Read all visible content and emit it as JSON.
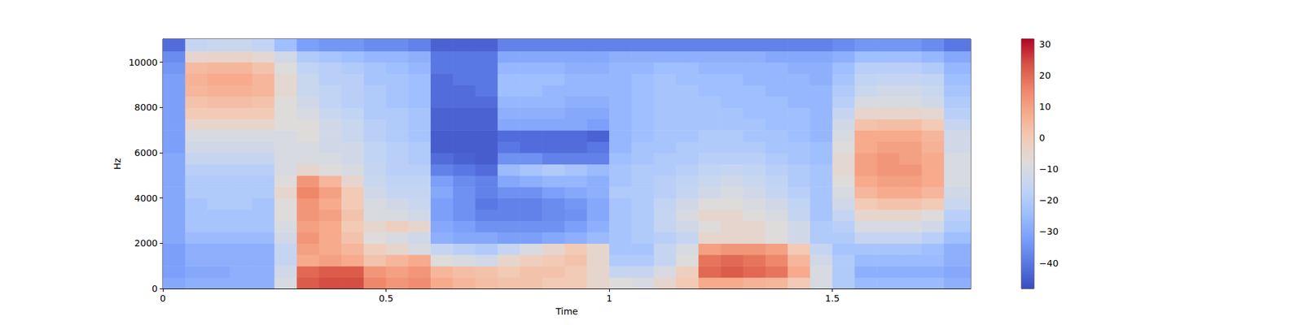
{
  "chart_data": {
    "type": "heatmap",
    "x_label": "Time",
    "y_label": "Hz",
    "xlim": [
      0,
      1.81
    ],
    "xticks": [
      0,
      0.5,
      1,
      1.5
    ],
    "ylim": [
      0,
      11025
    ],
    "yticks": [
      0,
      2000,
      4000,
      6000,
      8000,
      10000
    ],
    "x_edges": [
      0,
      0.05,
      0.1,
      0.15,
      0.2,
      0.25,
      0.3,
      0.35,
      0.4,
      0.45,
      0.5,
      0.55,
      0.6,
      0.65,
      0.7,
      0.75,
      0.8,
      0.85,
      0.9,
      0.95,
      1.0,
      1.05,
      1.1,
      1.15,
      1.2,
      1.25,
      1.3,
      1.35,
      1.4,
      1.45,
      1.5,
      1.55,
      1.6,
      1.65,
      1.7,
      1.75,
      1.81
    ],
    "y_edges": [
      0,
      500,
      1000,
      1500,
      2000,
      2500,
      3000,
      3500,
      4000,
      4500,
      5000,
      5500,
      6000,
      6500,
      7000,
      7500,
      8000,
      8500,
      9000,
      9500,
      10000,
      10500,
      11025
    ],
    "cells": [
      [
        -30,
        -28,
        -28,
        -28,
        -28,
        -10,
        22,
        24,
        24,
        15,
        12,
        14,
        8,
        5,
        3,
        2,
        2,
        0,
        0,
        -5,
        -8,
        -10,
        -5,
        0,
        8,
        8,
        6,
        5,
        0,
        -10,
        -20,
        -25,
        -25,
        -25,
        -25,
        -28
      ],
      [
        -32,
        -30,
        -30,
        -28,
        -28,
        -12,
        20,
        22,
        22,
        12,
        10,
        12,
        5,
        3,
        2,
        0,
        2,
        2,
        0,
        -5,
        -15,
        -15,
        -10,
        -2,
        20,
        22,
        20,
        18,
        8,
        -10,
        -20,
        -28,
        -28,
        -28,
        -28,
        -30
      ],
      [
        -32,
        -28,
        -28,
        -28,
        -28,
        -15,
        8,
        10,
        8,
        2,
        5,
        8,
        -8,
        -10,
        -12,
        -5,
        -2,
        0,
        2,
        -5,
        -20,
        -20,
        -15,
        -8,
        18,
        20,
        18,
        15,
        5,
        -12,
        -20,
        -25,
        -25,
        -25,
        -25,
        -28
      ],
      [
        -32,
        -28,
        -28,
        -28,
        -28,
        -15,
        10,
        8,
        5,
        -2,
        -5,
        -10,
        -15,
        -18,
        -20,
        -15,
        -10,
        -5,
        0,
        -5,
        -22,
        -22,
        -15,
        -10,
        10,
        12,
        12,
        10,
        0,
        -15,
        -22,
        -22,
        -22,
        -22,
        -24,
        -28
      ],
      [
        -30,
        -25,
        -25,
        -25,
        -25,
        -12,
        12,
        8,
        2,
        -8,
        -10,
        -12,
        -28,
        -30,
        -30,
        -32,
        -32,
        -30,
        -28,
        -25,
        -22,
        -20,
        -18,
        -15,
        -5,
        -5,
        -5,
        -8,
        -12,
        -20,
        -20,
        -15,
        -15,
        -15,
        -18,
        -24
      ],
      [
        -30,
        -22,
        -22,
        -22,
        -22,
        -10,
        10,
        8,
        0,
        -5,
        -2,
        -5,
        -30,
        -32,
        -35,
        -35,
        -35,
        -35,
        -32,
        -28,
        -22,
        -20,
        -15,
        -12,
        -8,
        -5,
        -5,
        -8,
        -12,
        -20,
        -18,
        -10,
        -10,
        -10,
        -12,
        -20
      ],
      [
        -30,
        -22,
        -22,
        -22,
        -22,
        -8,
        12,
        10,
        2,
        -10,
        -10,
        -12,
        -32,
        -35,
        -38,
        -38,
        -38,
        -36,
        -35,
        -30,
        -22,
        -20,
        -15,
        -10,
        -5,
        -5,
        -8,
        -10,
        -15,
        -22,
        -15,
        -5,
        -5,
        -5,
        -8,
        -18
      ],
      [
        -30,
        -22,
        -20,
        -20,
        -22,
        -8,
        12,
        8,
        0,
        -10,
        -12,
        -14,
        -32,
        -35,
        -40,
        -38,
        -38,
        -36,
        -34,
        -30,
        -22,
        -20,
        -16,
        -12,
        -8,
        -8,
        -10,
        -12,
        -16,
        -22,
        -12,
        0,
        2,
        2,
        0,
        -14
      ],
      [
        -30,
        -20,
        -20,
        -20,
        -20,
        -5,
        15,
        10,
        0,
        -12,
        -15,
        -15,
        -30,
        -35,
        -38,
        -35,
        -35,
        -32,
        -30,
        -28,
        -20,
        -20,
        -18,
        -15,
        -12,
        -10,
        -12,
        -15,
        -18,
        -22,
        -10,
        5,
        8,
        8,
        5,
        -12
      ],
      [
        -30,
        -20,
        -20,
        -20,
        -20,
        -8,
        12,
        5,
        -5,
        -14,
        -16,
        -16,
        -32,
        -36,
        -38,
        -30,
        -28,
        -26,
        -26,
        -28,
        -22,
        -20,
        -18,
        -16,
        -14,
        -12,
        -14,
        -16,
        -20,
        -22,
        -8,
        8,
        10,
        10,
        8,
        -10
      ],
      [
        -30,
        -18,
        -18,
        -18,
        -18,
        -10,
        -5,
        -8,
        -10,
        -15,
        -18,
        -18,
        -38,
        -40,
        -42,
        -25,
        -22,
        -20,
        -22,
        -25,
        -22,
        -20,
        -20,
        -18,
        -16,
        -15,
        -16,
        -18,
        -20,
        -22,
        -6,
        10,
        12,
        12,
        8,
        -10
      ],
      [
        -30,
        -15,
        -15,
        -15,
        -15,
        -10,
        -10,
        -10,
        -12,
        -16,
        -18,
        -20,
        -42,
        -44,
        -45,
        -35,
        -35,
        -38,
        -38,
        -38,
        -24,
        -22,
        -20,
        -20,
        -18,
        -18,
        -18,
        -20,
        -22,
        -24,
        -6,
        10,
        12,
        10,
        8,
        -10
      ],
      [
        -32,
        -12,
        -12,
        -12,
        -12,
        -10,
        -10,
        -12,
        -12,
        -16,
        -18,
        -20,
        -45,
        -45,
        -45,
        -40,
        -42,
        -42,
        -42,
        -40,
        -26,
        -22,
        -22,
        -20,
        -20,
        -20,
        -20,
        -22,
        -22,
        -24,
        -8,
        8,
        10,
        10,
        6,
        -12
      ],
      [
        -32,
        -10,
        -10,
        -10,
        -10,
        -10,
        -8,
        -12,
        -14,
        -18,
        -20,
        -22,
        -45,
        -45,
        -45,
        -42,
        -42,
        -42,
        -42,
        -44,
        -26,
        -24,
        -22,
        -22,
        -20,
        -20,
        -22,
        -22,
        -24,
        -26,
        -10,
        8,
        8,
        8,
        5,
        -12
      ],
      [
        -32,
        -5,
        -5,
        -5,
        -5,
        -8,
        -8,
        -12,
        -14,
        -18,
        -20,
        -22,
        -44,
        -44,
        -44,
        -30,
        -30,
        -30,
        -30,
        -32,
        -26,
        -24,
        -22,
        -22,
        -22,
        -22,
        -22,
        -24,
        -24,
        -26,
        -12,
        2,
        3,
        3,
        0,
        -15
      ],
      [
        -32,
        0,
        0,
        0,
        0,
        -8,
        -10,
        -14,
        -16,
        -20,
        -20,
        -22,
        -44,
        -44,
        -44,
        -28,
        -28,
        -28,
        -30,
        -30,
        -26,
        -24,
        -22,
        -22,
        -22,
        -22,
        -24,
        -24,
        -24,
        -26,
        -15,
        -5,
        -5,
        -5,
        -6,
        -18
      ],
      [
        -32,
        2,
        3,
        3,
        2,
        -8,
        -12,
        -16,
        -18,
        -20,
        -22,
        -24,
        -42,
        -42,
        -42,
        -26,
        -26,
        -26,
        -28,
        -28,
        -26,
        -24,
        -22,
        -22,
        -22,
        -24,
        -24,
        -24,
        -26,
        -26,
        -18,
        -10,
        -10,
        -10,
        -12,
        -20
      ],
      [
        -32,
        5,
        6,
        6,
        5,
        -6,
        -14,
        -16,
        -18,
        -20,
        -22,
        -24,
        -42,
        -42,
        -40,
        -24,
        -24,
        -26,
        -26,
        -26,
        -26,
        -24,
        -22,
        -22,
        -24,
        -24,
        -24,
        -26,
        -26,
        -26,
        -20,
        -14,
        -12,
        -12,
        -14,
        -22
      ],
      [
        -32,
        6,
        8,
        8,
        5,
        -6,
        -14,
        -18,
        -18,
        -22,
        -22,
        -24,
        -42,
        -40,
        -40,
        -24,
        -24,
        -24,
        -26,
        -26,
        -26,
        -24,
        -22,
        -24,
        -24,
        -24,
        -26,
        -26,
        -26,
        -28,
        -22,
        -16,
        -15,
        -15,
        -16,
        -24
      ],
      [
        -34,
        4,
        5,
        5,
        2,
        -8,
        -16,
        -18,
        -20,
        -22,
        -24,
        -26,
        -40,
        -40,
        -40,
        -26,
        -26,
        -26,
        -28,
        -28,
        -26,
        -26,
        -24,
        -24,
        -26,
        -26,
        -26,
        -26,
        -28,
        -28,
        -24,
        -18,
        -18,
        -18,
        -20,
        -26
      ],
      [
        -36,
        -5,
        -4,
        -4,
        -6,
        -12,
        -20,
        -22,
        -24,
        -26,
        -26,
        -28,
        -40,
        -40,
        -40,
        -30,
        -30,
        -30,
        -30,
        -30,
        -28,
        -28,
        -28,
        -28,
        -28,
        -28,
        -28,
        -30,
        -30,
        -30,
        -28,
        -24,
        -24,
        -24,
        -26,
        -30
      ],
      [
        -42,
        -15,
        -14,
        -14,
        -16,
        -24,
        -32,
        -34,
        -34,
        -36,
        -36,
        -38,
        -44,
        -44,
        -44,
        -38,
        -38,
        -38,
        -38,
        -38,
        -38,
        -38,
        -38,
        -38,
        -38,
        -38,
        -38,
        -38,
        -38,
        -38,
        -36,
        -34,
        -34,
        -34,
        -36,
        -40
      ]
    ],
    "color_range": [
      -48.2,
      31.6
    ],
    "color_ticks": [
      {
        "value": -40,
        "label": "−40"
      },
      {
        "value": -30,
        "label": "−30"
      },
      {
        "value": -20,
        "label": "−20"
      },
      {
        "value": -10,
        "label": "−10"
      },
      0,
      10,
      20,
      30
    ]
  }
}
